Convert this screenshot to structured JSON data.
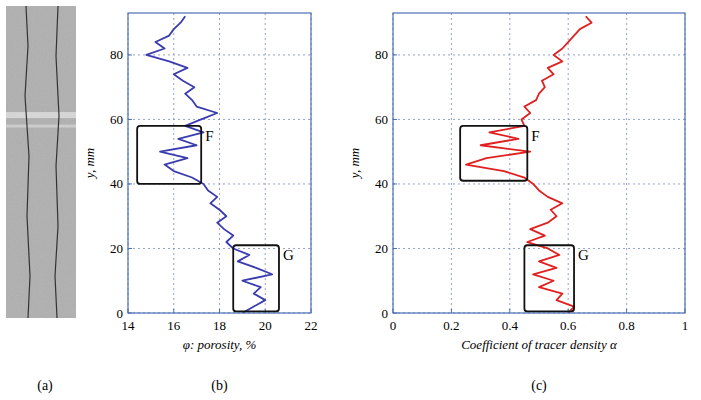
{
  "chart_data": [
    {
      "type": "image",
      "panel_label": "(a)"
    },
    {
      "type": "line",
      "panel_label": "(b)",
      "x_label": "φ: porosity, %",
      "y_label": "y, mm",
      "xlim": [
        14,
        22
      ],
      "xticks": [
        14,
        16,
        18,
        20,
        22
      ],
      "ylim": [
        0,
        93
      ],
      "yticks": [
        0,
        20,
        40,
        60,
        80
      ],
      "grid": true,
      "series": [
        {
          "color": "#3b3bb0",
          "y": [
            0,
            2,
            4,
            6,
            8,
            10,
            12,
            14,
            16,
            18,
            20,
            22,
            24,
            26,
            28,
            30,
            32,
            34,
            36,
            38,
            40,
            42,
            44,
            46,
            48,
            50,
            52,
            54,
            56,
            58,
            60,
            62,
            64,
            66,
            68,
            70,
            72,
            74,
            76,
            78,
            80,
            82,
            84,
            86,
            88,
            90,
            92
          ],
          "x": [
            19.0,
            19.5,
            20.0,
            19.5,
            19.8,
            19.0,
            20.3,
            19.6,
            18.8,
            19.3,
            18.6,
            18.3,
            18.6,
            18.2,
            17.9,
            18.3,
            18.0,
            17.6,
            17.9,
            17.5,
            17.3,
            16.8,
            16.0,
            15.6,
            16.6,
            15.4,
            17.0,
            16.2,
            17.3,
            16.5,
            17.2,
            17.9,
            17.0,
            16.8,
            16.5,
            16.9,
            16.4,
            16.0,
            16.6,
            15.8,
            14.8,
            15.6,
            15.2,
            15.8,
            16.0,
            16.3,
            16.5
          ]
        }
      ],
      "annotations": [
        {
          "label": "F",
          "x0": 14.4,
          "x1": 17.2,
          "y0": 40,
          "y1": 58
        },
        {
          "label": "G",
          "x0": 18.6,
          "x1": 20.6,
          "y0": 0.5,
          "y1": 21
        }
      ]
    },
    {
      "type": "line",
      "panel_label": "(c)",
      "x_label": "Coefficient of tracer density α",
      "y_label": "y, mm",
      "xlim": [
        0,
        1
      ],
      "xticks": [
        0,
        0.2,
        0.4,
        0.6,
        0.8,
        1
      ],
      "ylim": [
        0,
        93
      ],
      "yticks": [
        0,
        20,
        40,
        60,
        80
      ],
      "grid": true,
      "series": [
        {
          "color": "#e02020",
          "y": [
            0,
            2,
            4,
            6,
            8,
            10,
            12,
            14,
            16,
            18,
            20,
            22,
            24,
            26,
            28,
            30,
            32,
            34,
            36,
            38,
            40,
            42,
            44,
            46,
            48,
            50,
            52,
            54,
            56,
            58,
            60,
            62,
            64,
            66,
            68,
            70,
            72,
            74,
            76,
            78,
            80,
            82,
            84,
            86,
            88,
            90,
            92
          ],
          "x": [
            0.6,
            0.62,
            0.56,
            0.58,
            0.5,
            0.55,
            0.48,
            0.56,
            0.5,
            0.57,
            0.53,
            0.46,
            0.52,
            0.47,
            0.53,
            0.56,
            0.54,
            0.58,
            0.53,
            0.5,
            0.48,
            0.45,
            0.38,
            0.25,
            0.32,
            0.47,
            0.3,
            0.43,
            0.33,
            0.45,
            0.44,
            0.47,
            0.45,
            0.49,
            0.5,
            0.52,
            0.51,
            0.55,
            0.53,
            0.58,
            0.55,
            0.58,
            0.6,
            0.62,
            0.64,
            0.68,
            0.66
          ]
        }
      ],
      "annotations": [
        {
          "label": "F",
          "x0": 0.23,
          "x1": 0.46,
          "y0": 41,
          "y1": 58
        },
        {
          "label": "G",
          "x0": 0.45,
          "x1": 0.62,
          "y0": 0.5,
          "y1": 21
        }
      ]
    }
  ]
}
